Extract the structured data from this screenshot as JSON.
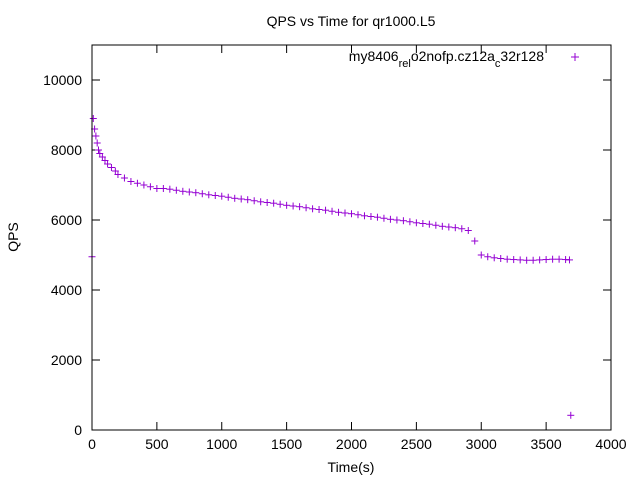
{
  "chart_data": {
    "type": "scatter",
    "title": "QPS vs Time for qr1000.L5",
    "xlabel": "Time(s)",
    "ylabel": "QPS",
    "xlim": [
      0,
      4000
    ],
    "ylim": [
      0,
      11000
    ],
    "xticks": [
      0,
      500,
      1000,
      1500,
      2000,
      2500,
      3000,
      3500,
      4000
    ],
    "yticks": [
      0,
      2000,
      4000,
      6000,
      8000,
      10000
    ],
    "legend_position": "top-right",
    "series": [
      {
        "name": "my8406_rel_o2nofp.cz12a_c32r128",
        "legend_parts": [
          {
            "text": "my8406",
            "sub": false
          },
          {
            "text": "rel",
            "sub": true
          },
          {
            "text": "o2nofp.cz12a",
            "sub": false
          },
          {
            "text": "c",
            "sub": true
          },
          {
            "text": "32r128",
            "sub": false
          }
        ],
        "marker": "+",
        "color": "#9400d3",
        "x": [
          0,
          10,
          20,
          30,
          40,
          50,
          60,
          80,
          100,
          120,
          150,
          180,
          200,
          250,
          300,
          350,
          400,
          450,
          500,
          550,
          600,
          650,
          700,
          750,
          800,
          850,
          900,
          950,
          1000,
          1050,
          1100,
          1150,
          1200,
          1250,
          1300,
          1350,
          1400,
          1450,
          1500,
          1550,
          1600,
          1650,
          1700,
          1750,
          1800,
          1850,
          1900,
          1950,
          2000,
          2050,
          2100,
          2150,
          2200,
          2250,
          2300,
          2350,
          2400,
          2450,
          2500,
          2550,
          2600,
          2650,
          2700,
          2750,
          2800,
          2850,
          2900,
          2950,
          3000,
          3050,
          3100,
          3150,
          3200,
          3250,
          3300,
          3350,
          3400,
          3450,
          3500,
          3550,
          3600,
          3650,
          3680,
          3690
        ],
        "y": [
          4950,
          8900,
          8600,
          8400,
          8200,
          8000,
          7900,
          7800,
          7700,
          7600,
          7500,
          7400,
          7300,
          7200,
          7100,
          7050,
          7000,
          6950,
          6900,
          6900,
          6880,
          6850,
          6820,
          6800,
          6780,
          6750,
          6720,
          6700,
          6680,
          6650,
          6620,
          6600,
          6580,
          6550,
          6520,
          6500,
          6480,
          6450,
          6420,
          6400,
          6380,
          6350,
          6320,
          6300,
          6280,
          6250,
          6220,
          6200,
          6180,
          6150,
          6120,
          6100,
          6080,
          6050,
          6020,
          6000,
          5980,
          5950,
          5920,
          5900,
          5880,
          5850,
          5820,
          5800,
          5780,
          5750,
          5700,
          5400,
          5000,
          4950,
          4920,
          4900,
          4880,
          4870,
          4860,
          4850,
          4850,
          4860,
          4870,
          4880,
          4880,
          4870,
          4860,
          420
        ]
      }
    ]
  }
}
